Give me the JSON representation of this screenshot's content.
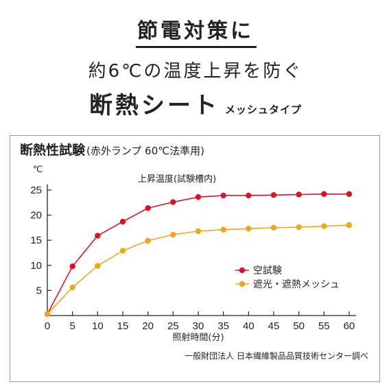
{
  "header": {
    "line1": "節電対策に",
    "line2": "約6℃の温度上昇を防ぐ",
    "line3_main": "断熱シート",
    "line3_sub": "メッシュタイプ"
  },
  "panel": {
    "title_main": "断熱性試験",
    "title_sub": "(赤外ランプ 60℃法準用)"
  },
  "chart_data": {
    "type": "line",
    "title": "上昇温度(試験槽内)",
    "xlabel": "照射時間(分)",
    "ylabel": "℃",
    "x": [
      0,
      5,
      10,
      15,
      20,
      25,
      30,
      35,
      40,
      45,
      50,
      55,
      60
    ],
    "xlim": [
      0,
      60
    ],
    "ylim": [
      0,
      25
    ],
    "xticks": [
      0,
      5,
      10,
      15,
      20,
      25,
      30,
      35,
      40,
      45,
      50,
      55,
      60
    ],
    "yticks": [
      5,
      10,
      15,
      20,
      25
    ],
    "grid": false,
    "legend_position": "right",
    "series": [
      {
        "name": "空試験",
        "color": "#d7132a",
        "values": [
          0.3,
          9.8,
          15.9,
          18.7,
          21.4,
          22.6,
          23.6,
          23.9,
          23.9,
          24.0,
          24.1,
          24.2,
          24.2
        ]
      },
      {
        "name": "遮光・遮熱メッシュ",
        "color": "#eea51a",
        "values": [
          0.3,
          5.6,
          9.9,
          12.9,
          14.9,
          16.1,
          16.8,
          17.1,
          17.3,
          17.5,
          17.6,
          17.8,
          18.0
        ]
      }
    ],
    "source": "一般財団法人 日本繊維製品品質技術センター調べ"
  }
}
